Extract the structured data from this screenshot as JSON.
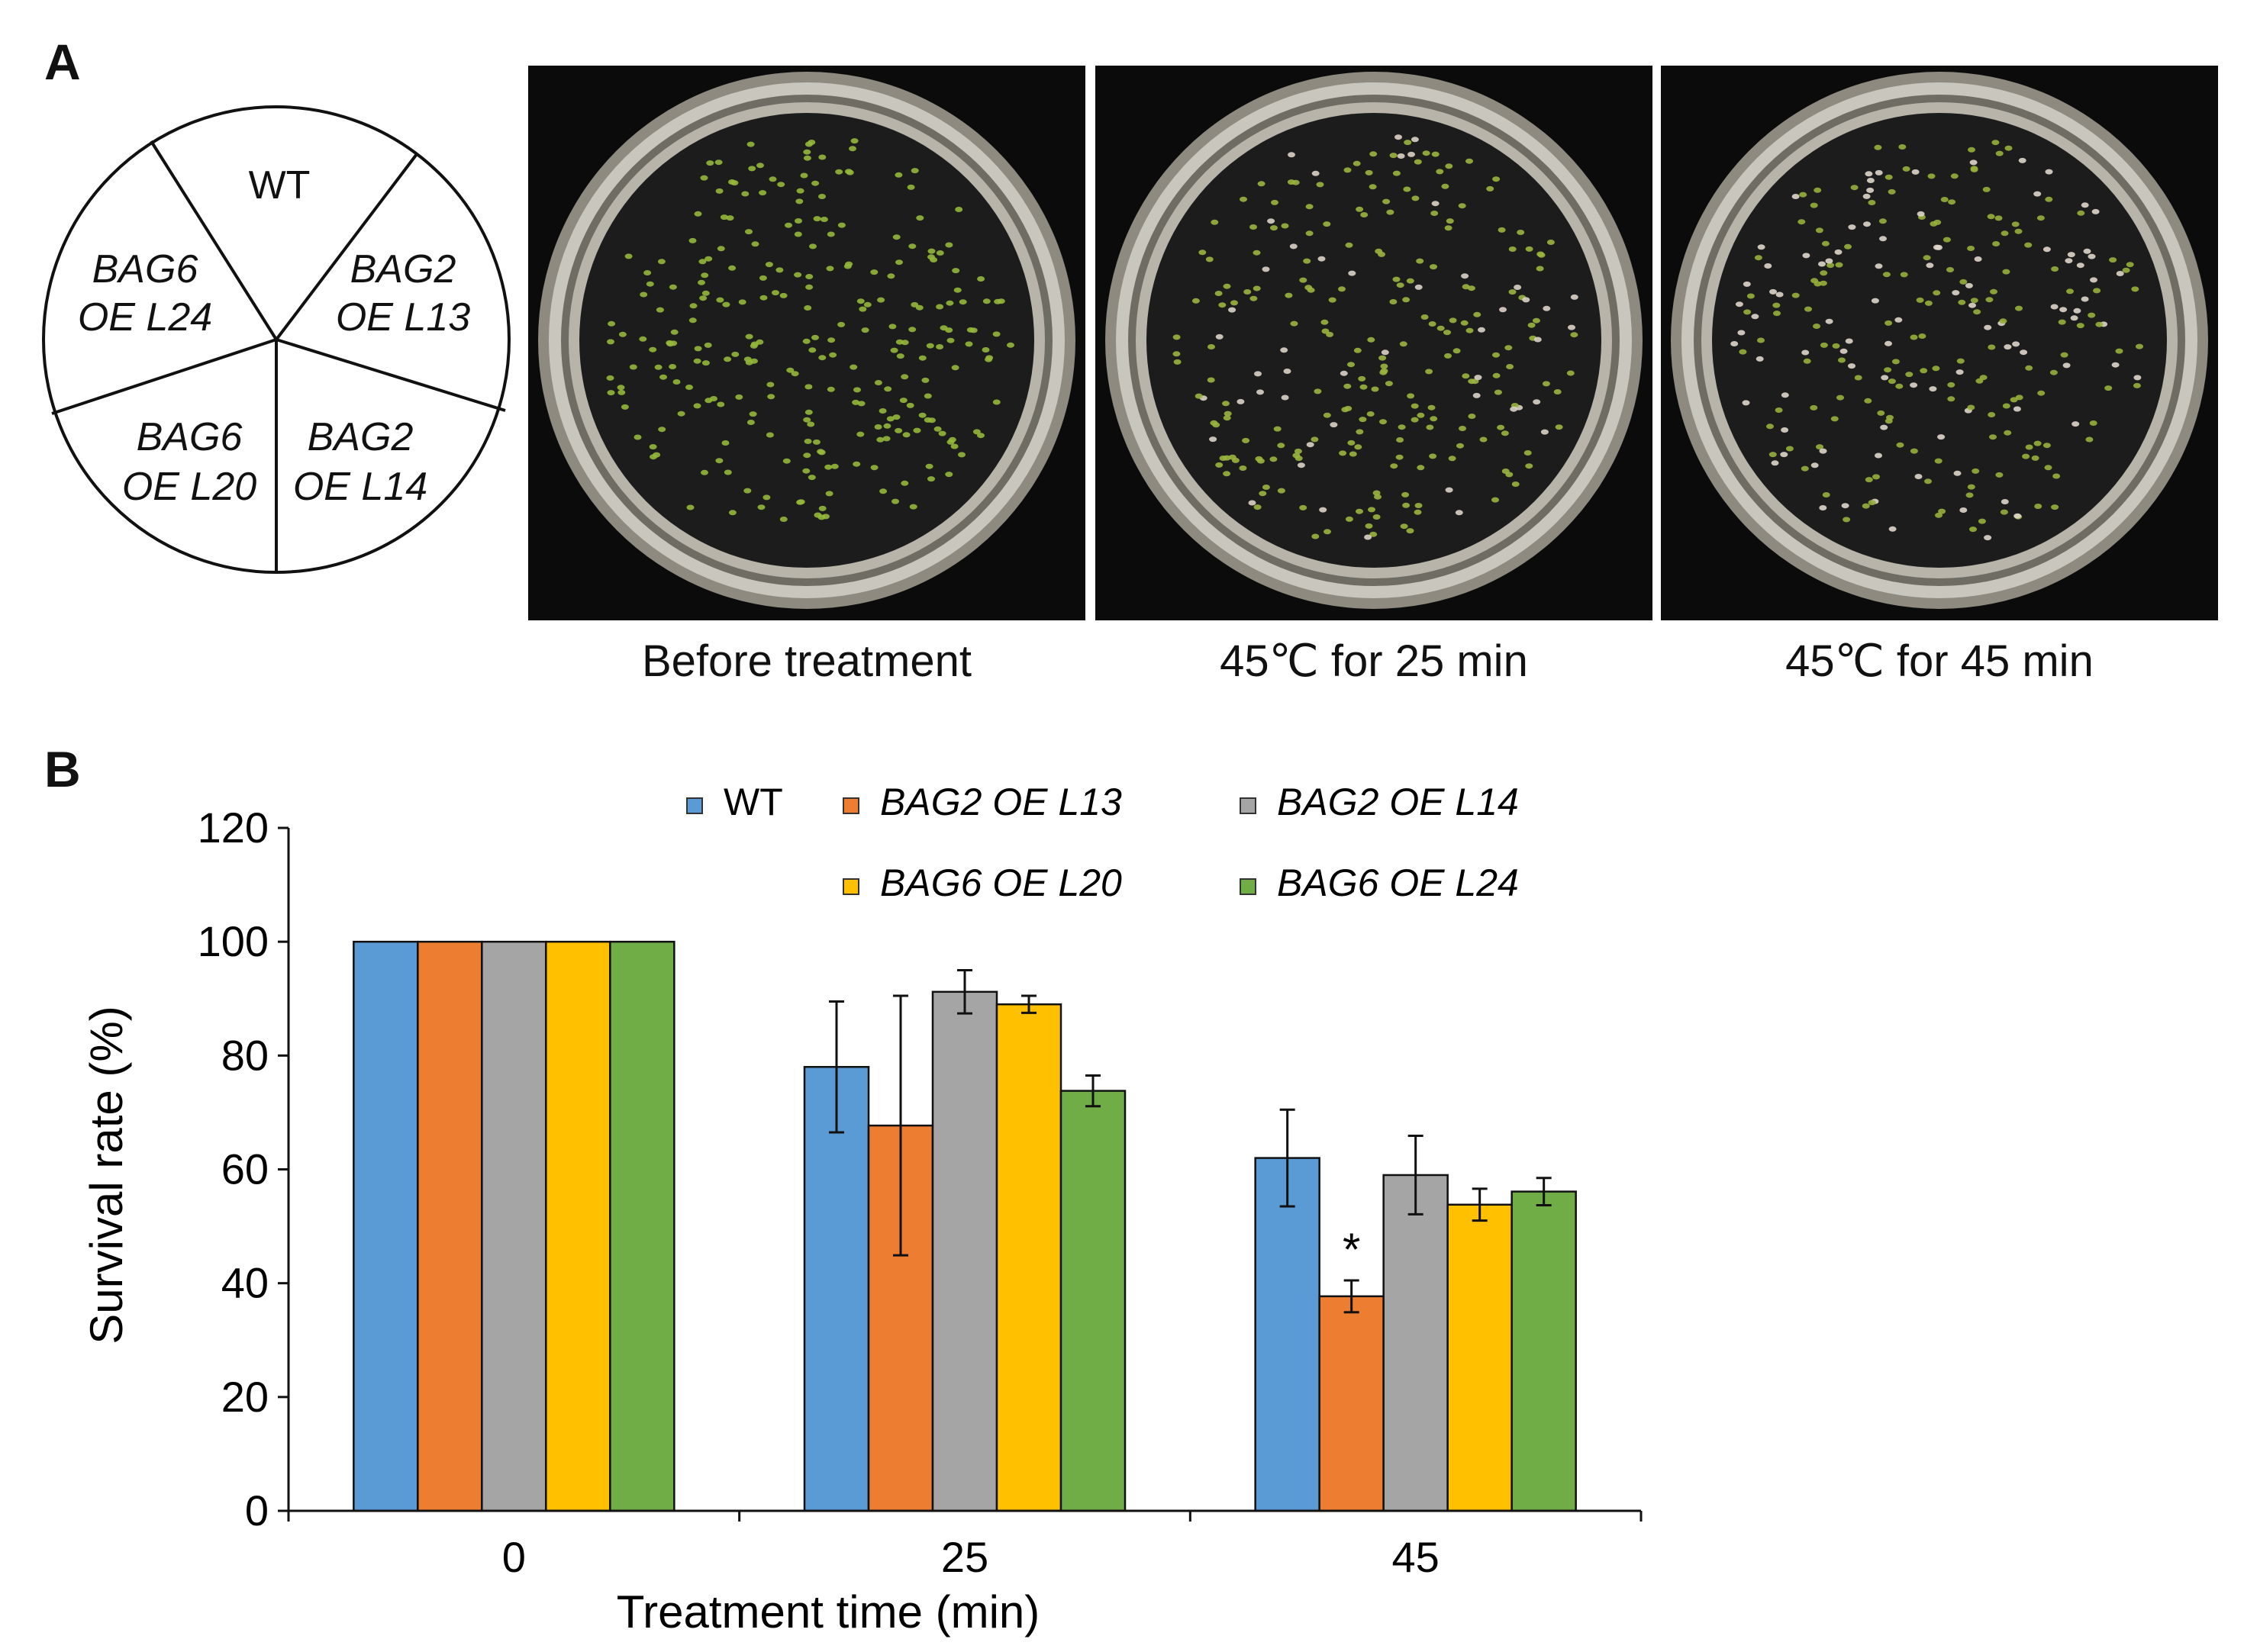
{
  "panel_a": {
    "label": "A",
    "sectors": [
      {
        "line1": "WT",
        "line2": ""
      },
      {
        "line1": "BAG2",
        "line2": "OE L13"
      },
      {
        "line1": "BAG2",
        "line2": "OE L14"
      },
      {
        "line1": "BAG6",
        "line2": "OE L20"
      },
      {
        "line1": "BAG6",
        "line2": "OE L24"
      }
    ],
    "photos": [
      {
        "caption": "Before treatment",
        "live_color": "#93b83a",
        "dead_color": "#d7cdbf",
        "live_fraction": 1.0
      },
      {
        "caption": "45℃ for 25 min",
        "live_color": "#9ab53e",
        "dead_color": "#ddd3c6",
        "live_fraction": 0.78
      },
      {
        "caption": "45℃ for 45 min",
        "live_color": "#97b03c",
        "dead_color": "#e0d6ca",
        "live_fraction": 0.58
      }
    ]
  },
  "panel_b": {
    "label": "B",
    "significance_marker": "*"
  },
  "chart_data": {
    "type": "bar",
    "title": "",
    "xlabel": "Treatment time (min)",
    "ylabel": "Survival rate (%)",
    "categories": [
      "0",
      "25",
      "45"
    ],
    "ylim": [
      0,
      120
    ],
    "yticks": [
      0,
      20,
      40,
      60,
      80,
      100,
      120
    ],
    "legend_position": "top",
    "series": [
      {
        "name": "WT",
        "italic": false,
        "color": "#5b9bd5",
        "values": [
          100,
          78,
          62
        ],
        "errors": [
          0,
          11.5,
          8.5
        ]
      },
      {
        "name": "BAG2 OE L13",
        "italic": true,
        "color": "#ed7d31",
        "values": [
          100,
          67.7,
          37.7
        ],
        "errors": [
          0,
          22.8,
          2.8
        ]
      },
      {
        "name": "BAG2 OE L14",
        "italic": true,
        "color": "#a5a5a5",
        "values": [
          100,
          91.2,
          59
        ],
        "errors": [
          0,
          3.8,
          6.9
        ]
      },
      {
        "name": "BAG6 OE L20",
        "italic": true,
        "color": "#ffc000",
        "values": [
          100,
          89,
          53.8
        ],
        "errors": [
          0,
          1.5,
          2.8
        ]
      },
      {
        "name": "BAG6 OE L24",
        "italic": true,
        "color": "#70ad47",
        "values": [
          100,
          73.8,
          56.1
        ],
        "errors": [
          0,
          2.7,
          2.4
        ]
      }
    ],
    "annotations": [
      {
        "category": "45",
        "series": "BAG2 OE L13",
        "text": "*"
      }
    ]
  }
}
